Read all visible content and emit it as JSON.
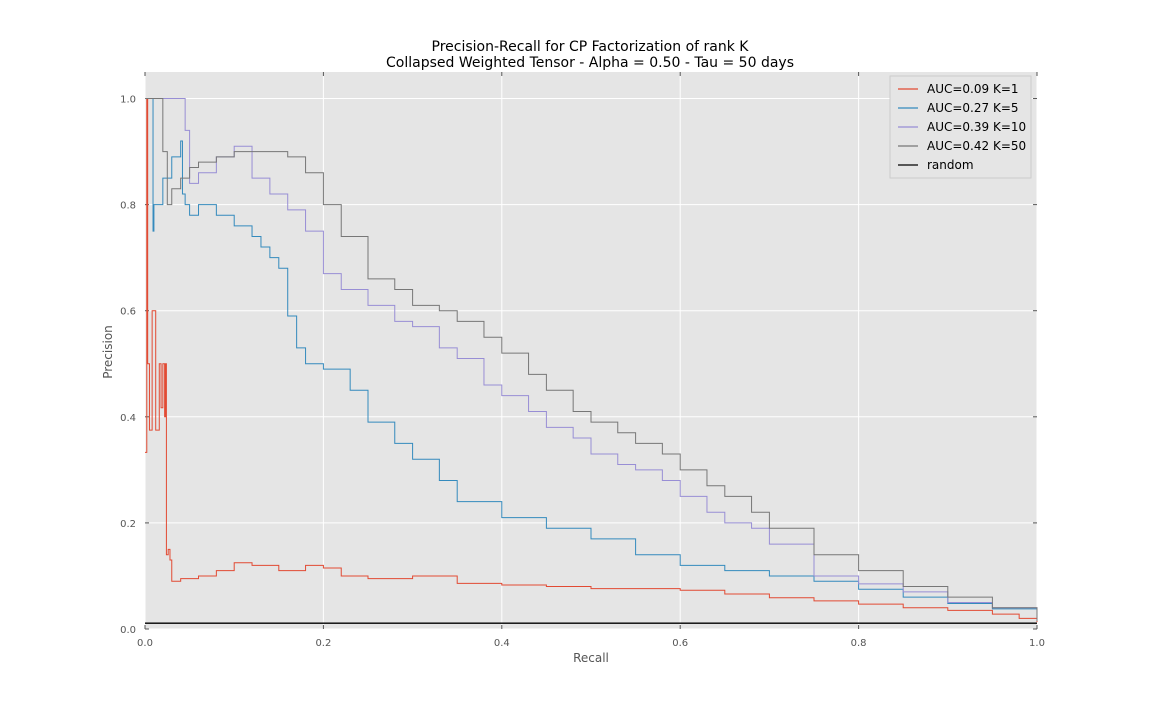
{
  "chart_data": {
    "type": "line",
    "title_lines": [
      "Precision-Recall for CP Factorization of rank K",
      "Collapsed Weighted Tensor -  Alpha = 0.50 - Tau = 50 days"
    ],
    "xlabel": "Recall",
    "ylabel": "Precision",
    "xlim": [
      0,
      1
    ],
    "ylim": [
      0,
      1.05
    ],
    "xticks": [
      "0.0",
      "0.2",
      "0.4",
      "0.6",
      "0.8",
      "1.0"
    ],
    "yticks": [
      "0.0",
      "0.2",
      "0.4",
      "0.6",
      "0.8",
      "1.0"
    ],
    "grid": true,
    "legend_position": "top-right",
    "series": [
      {
        "name": "AUC=0.09 K=1",
        "color": "#e24a33",
        "x": [
          0.0,
          0.002,
          0.003,
          0.005,
          0.008,
          0.012,
          0.016,
          0.018,
          0.02,
          0.022,
          0.023,
          0.024,
          0.026,
          0.028,
          0.03,
          0.04,
          0.06,
          0.08,
          0.1,
          0.12,
          0.15,
          0.18,
          0.2,
          0.22,
          0.25,
          0.3,
          0.32,
          0.35,
          0.4,
          0.45,
          0.5,
          0.55,
          0.6,
          0.65,
          0.7,
          0.75,
          0.8,
          0.85,
          0.9,
          0.95,
          0.98,
          1.0
        ],
        "y": [
          0.333,
          1.0,
          0.5,
          0.375,
          0.6,
          0.375,
          0.5,
          0.417,
          0.5,
          0.4,
          0.5,
          0.14,
          0.15,
          0.13,
          0.09,
          0.095,
          0.1,
          0.11,
          0.125,
          0.12,
          0.11,
          0.12,
          0.115,
          0.1,
          0.095,
          0.1,
          0.1,
          0.086,
          0.083,
          0.08,
          0.076,
          0.076,
          0.073,
          0.066,
          0.059,
          0.053,
          0.047,
          0.04,
          0.035,
          0.028,
          0.02,
          0.013
        ]
      },
      {
        "name": "AUC=0.27 K=5",
        "color": "#348abd",
        "x": [
          0.0,
          0.006,
          0.008,
          0.009,
          0.01,
          0.02,
          0.03,
          0.04,
          0.042,
          0.045,
          0.05,
          0.06,
          0.08,
          0.1,
          0.12,
          0.13,
          0.14,
          0.15,
          0.16,
          0.17,
          0.18,
          0.2,
          0.22,
          0.23,
          0.25,
          0.28,
          0.3,
          0.33,
          0.35,
          0.4,
          0.45,
          0.5,
          0.55,
          0.6,
          0.65,
          0.7,
          0.75,
          0.8,
          0.85,
          0.9,
          0.95,
          1.0
        ],
        "y": [
          1.0,
          1.0,
          1.0,
          0.75,
          0.8,
          0.85,
          0.89,
          0.92,
          0.82,
          0.8,
          0.78,
          0.8,
          0.78,
          0.76,
          0.74,
          0.72,
          0.7,
          0.68,
          0.59,
          0.53,
          0.5,
          0.49,
          0.49,
          0.45,
          0.39,
          0.35,
          0.32,
          0.28,
          0.24,
          0.21,
          0.19,
          0.17,
          0.14,
          0.12,
          0.11,
          0.1,
          0.09,
          0.075,
          0.06,
          0.048,
          0.038,
          0.015
        ]
      },
      {
        "name": "AUC=0.39 K=10",
        "color": "#988ed5",
        "x": [
          0.0,
          0.005,
          0.02,
          0.03,
          0.04,
          0.045,
          0.05,
          0.06,
          0.08,
          0.1,
          0.12,
          0.14,
          0.16,
          0.18,
          0.2,
          0.22,
          0.25,
          0.28,
          0.3,
          0.33,
          0.35,
          0.38,
          0.4,
          0.43,
          0.45,
          0.48,
          0.5,
          0.53,
          0.55,
          0.58,
          0.6,
          0.63,
          0.65,
          0.68,
          0.7,
          0.75,
          0.8,
          0.85,
          0.9,
          0.95,
          1.0
        ],
        "y": [
          1.0,
          1.0,
          1.0,
          1.0,
          1.0,
          0.94,
          0.84,
          0.86,
          0.89,
          0.91,
          0.85,
          0.82,
          0.79,
          0.75,
          0.67,
          0.64,
          0.61,
          0.58,
          0.57,
          0.53,
          0.51,
          0.46,
          0.44,
          0.41,
          0.38,
          0.36,
          0.33,
          0.31,
          0.3,
          0.28,
          0.25,
          0.22,
          0.2,
          0.19,
          0.16,
          0.1,
          0.085,
          0.07,
          0.05,
          0.04,
          0.015
        ]
      },
      {
        "name": "AUC=0.42 K=50",
        "color": "#777777",
        "x": [
          0.0,
          0.01,
          0.02,
          0.025,
          0.03,
          0.04,
          0.05,
          0.06,
          0.08,
          0.1,
          0.12,
          0.14,
          0.155,
          0.16,
          0.18,
          0.2,
          0.22,
          0.25,
          0.28,
          0.3,
          0.33,
          0.35,
          0.38,
          0.4,
          0.43,
          0.45,
          0.48,
          0.5,
          0.53,
          0.55,
          0.58,
          0.6,
          0.63,
          0.65,
          0.68,
          0.7,
          0.75,
          0.8,
          0.85,
          0.9,
          0.95,
          1.0
        ],
        "y": [
          1.0,
          1.0,
          0.9,
          0.8,
          0.83,
          0.85,
          0.87,
          0.88,
          0.89,
          0.9,
          0.9,
          0.9,
          0.9,
          0.89,
          0.86,
          0.8,
          0.74,
          0.66,
          0.64,
          0.61,
          0.6,
          0.58,
          0.55,
          0.52,
          0.48,
          0.45,
          0.41,
          0.39,
          0.37,
          0.35,
          0.33,
          0.3,
          0.27,
          0.25,
          0.22,
          0.19,
          0.14,
          0.11,
          0.08,
          0.06,
          0.04,
          0.015
        ]
      },
      {
        "name": "random",
        "color": "#000000",
        "x": [
          0.0,
          1.0
        ],
        "y": [
          0.011,
          0.011
        ]
      }
    ]
  }
}
